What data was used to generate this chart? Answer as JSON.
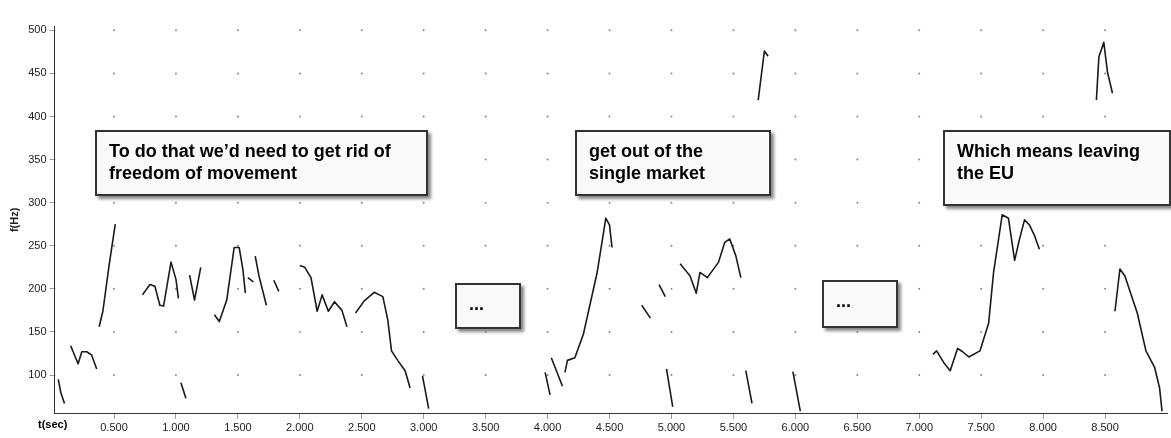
{
  "chart_data": {
    "type": "line",
    "xlabel": "t(sec)",
    "ylabel": "f(Hz)",
    "annotations": [
      "To do that we’d need to get rid of freedom of movement",
      "get out of the single market",
      "Which means leaving the EU",
      "...",
      "..."
    ],
    "x": [
      0.05,
      0.07,
      0.1,
      null,
      0.15,
      0.21,
      0.24,
      0.28,
      0.32,
      0.36,
      null,
      0.38,
      0.41,
      0.46,
      0.51,
      null,
      0.73,
      0.79,
      0.83,
      0.87,
      0.9,
      0.96,
      1.0,
      1.02,
      null,
      1.04,
      1.08,
      null,
      1.11,
      1.15,
      1.2,
      null,
      1.31,
      1.35,
      1.41,
      1.47,
      1.51,
      1.54,
      1.56,
      null,
      1.58,
      1.625,
      null,
      1.64,
      1.67,
      1.73,
      null,
      1.79,
      1.83,
      null,
      2.0,
      2.04,
      2.09,
      2.14,
      2.18,
      2.23,
      2.28,
      2.34,
      2.38,
      null,
      2.45,
      2.52,
      2.6,
      2.67,
      2.71,
      2.74,
      2.79,
      2.85,
      2.89,
      null,
      2.99,
      3.04,
      null,
      3.98,
      4.02,
      null,
      4.03,
      4.12,
      null,
      4.14,
      4.16,
      4.22,
      4.29,
      4.4,
      4.47,
      4.5,
      4.52,
      null,
      4.76,
      4.83,
      null,
      4.9,
      4.95,
      null,
      4.96,
      5.01,
      null,
      5.07,
      5.15,
      5.2,
      5.23,
      5.29,
      5.38,
      5.43,
      5.47,
      5.52,
      5.56,
      null,
      5.6,
      5.65,
      null,
      5.7,
      5.75,
      5.78,
      null,
      5.98,
      6.04,
      null,
      7.11,
      7.14,
      7.2,
      7.25,
      7.31,
      7.35,
      7.4,
      7.49,
      7.56,
      7.6,
      7.67,
      7.72,
      7.77,
      7.81,
      7.85,
      7.89,
      7.93,
      7.97,
      null,
      8.43,
      8.45,
      8.49,
      8.52,
      8.56,
      null,
      8.58,
      8.62,
      8.66,
      8.76,
      8.83,
      8.9,
      8.94,
      8.96
    ],
    "series": [
      {
        "color": "#1a1a1a",
        "values": [
          95,
          80,
          67,
          null,
          134,
          113,
          127,
          127,
          123,
          107,
          null,
          156,
          174,
          227,
          275,
          null,
          193,
          205,
          203,
          181,
          180,
          231,
          211,
          189,
          null,
          91,
          73,
          null,
          216,
          187,
          225,
          null,
          170,
          162,
          187,
          248,
          248,
          223,
          195,
          null,
          213,
          208,
          null,
          238,
          215,
          181,
          null,
          210,
          197,
          null,
          227,
          225,
          213,
          174,
          193,
          174,
          185,
          175,
          156,
          null,
          172,
          186,
          196,
          191,
          164,
          128,
          117,
          105,
          85,
          null,
          99,
          61,
          null,
          103,
          77,
          null,
          120,
          87,
          null,
          103,
          117,
          120,
          148,
          219,
          282,
          274,
          248,
          null,
          181,
          166,
          null,
          205,
          191,
          null,
          107,
          63,
          null,
          229,
          215,
          195,
          219,
          213,
          231,
          254,
          258,
          238,
          213,
          null,
          105,
          67,
          null,
          419,
          476,
          470,
          null,
          104,
          58,
          null,
          124,
          128,
          114,
          105,
          131,
          127,
          121,
          128,
          160,
          219,
          286,
          282,
          233,
          258,
          280,
          274,
          262,
          246,
          null,
          419,
          469,
          486,
          451,
          427,
          null,
          174,
          223,
          215,
          172,
          128,
          109,
          85,
          58
        ]
      }
    ],
    "xlim": [
      0.02,
      9.0
    ],
    "ylim": [
      55,
      505
    ],
    "xticks": [
      {
        "value": 0.5,
        "label": "0.500"
      },
      {
        "value": 1,
        "label": "1.000"
      },
      {
        "value": 1.5,
        "label": "1.500"
      },
      {
        "value": 2,
        "label": "2.000"
      },
      {
        "value": 2.5,
        "label": "2.500"
      },
      {
        "value": 3,
        "label": "3.000"
      },
      {
        "value": 3.5,
        "label": "3.500"
      },
      {
        "value": 4,
        "label": "4.000"
      },
      {
        "value": 4.5,
        "label": "4.500"
      },
      {
        "value": 5,
        "label": "5.000"
      },
      {
        "value": 5.5,
        "label": "5.500"
      },
      {
        "value": 6,
        "label": "6.000"
      },
      {
        "value": 6.5,
        "label": "6.500"
      },
      {
        "value": 7,
        "label": "7.000"
      },
      {
        "value": 7.5,
        "label": "7.500"
      },
      {
        "value": 8,
        "label": "8.000"
      },
      {
        "value": 8.5,
        "label": "8.500"
      }
    ],
    "yticks": [
      100,
      150,
      200,
      250,
      300,
      350,
      400,
      450,
      500
    ],
    "grid": true,
    "legend": false,
    "marker": "none",
    "line_style": "solid"
  }
}
